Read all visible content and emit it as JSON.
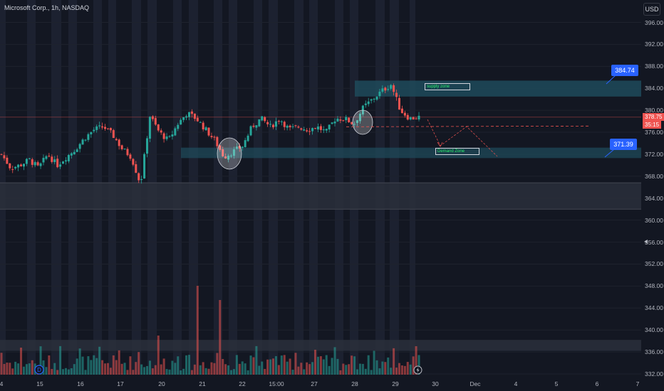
{
  "header": {
    "symbol_title": "Microsoft Corp., 1h, NASDAQ",
    "currency": "USD"
  },
  "price_axis": [
    "396.00",
    "392.00",
    "388.00",
    "384.00",
    "380.00",
    "376.00",
    "372.00",
    "368.00",
    "364.00",
    "360.00",
    "356.00",
    "352.00",
    "348.00",
    "344.00",
    "340.00",
    "336.00",
    "332.00"
  ],
  "time_axis": [
    "4",
    "15",
    "16",
    "17",
    "20",
    "21",
    "22",
    "15:00",
    "27",
    "28",
    "29",
    "30",
    "Dec",
    "4",
    "5",
    "6",
    "7"
  ],
  "current_price": {
    "price": "378.75",
    "countdown": "35:15"
  },
  "callouts": {
    "upper": "384.74",
    "lower": "371.39"
  },
  "zones": {
    "supply_label": "supply zone",
    "demand_label": "Demand Zone"
  },
  "colors": {
    "bull": "#26a69a",
    "bear": "#ef5350",
    "zone": "#1f4a5a",
    "callout": "#2962ff"
  },
  "chart_data": {
    "type": "candlestick",
    "title": "Microsoft Corp., 1h, NASDAQ",
    "ylim": [
      331,
      399
    ],
    "y_scale_ticks": [
      396,
      392,
      388,
      384,
      380,
      376,
      372,
      368,
      364,
      360,
      356,
      352,
      348,
      344,
      340,
      336,
      332
    ],
    "x_categories": [
      "4",
      "15",
      "16",
      "17",
      "20",
      "21",
      "22",
      "15:00",
      "27",
      "28",
      "29",
      "30",
      "Dec",
      "4",
      "5",
      "6",
      "7"
    ],
    "close_path": [
      372,
      369.5,
      370,
      371,
      369.5,
      372,
      370,
      371.5,
      373,
      375,
      376.5,
      377,
      375.5,
      373,
      371.5,
      366.5,
      379,
      376,
      374.5,
      377.5,
      379.5,
      378.5,
      376.5,
      374.5,
      371.5,
      372.5,
      373.5,
      377,
      378.5,
      377,
      378.5,
      376.5,
      377,
      376.5,
      377,
      376,
      378.5,
      378.5,
      377.5,
      380.5,
      382,
      383.5,
      384.7,
      380,
      378.5,
      378.75
    ],
    "supply_zone": [
      382.5,
      385.4
    ],
    "demand_zone": [
      371.3,
      373.2
    ],
    "support_band": [
      362,
      366.8
    ],
    "volume_band": [
      336.2,
      338.2
    ],
    "dashed_level": 377
  }
}
